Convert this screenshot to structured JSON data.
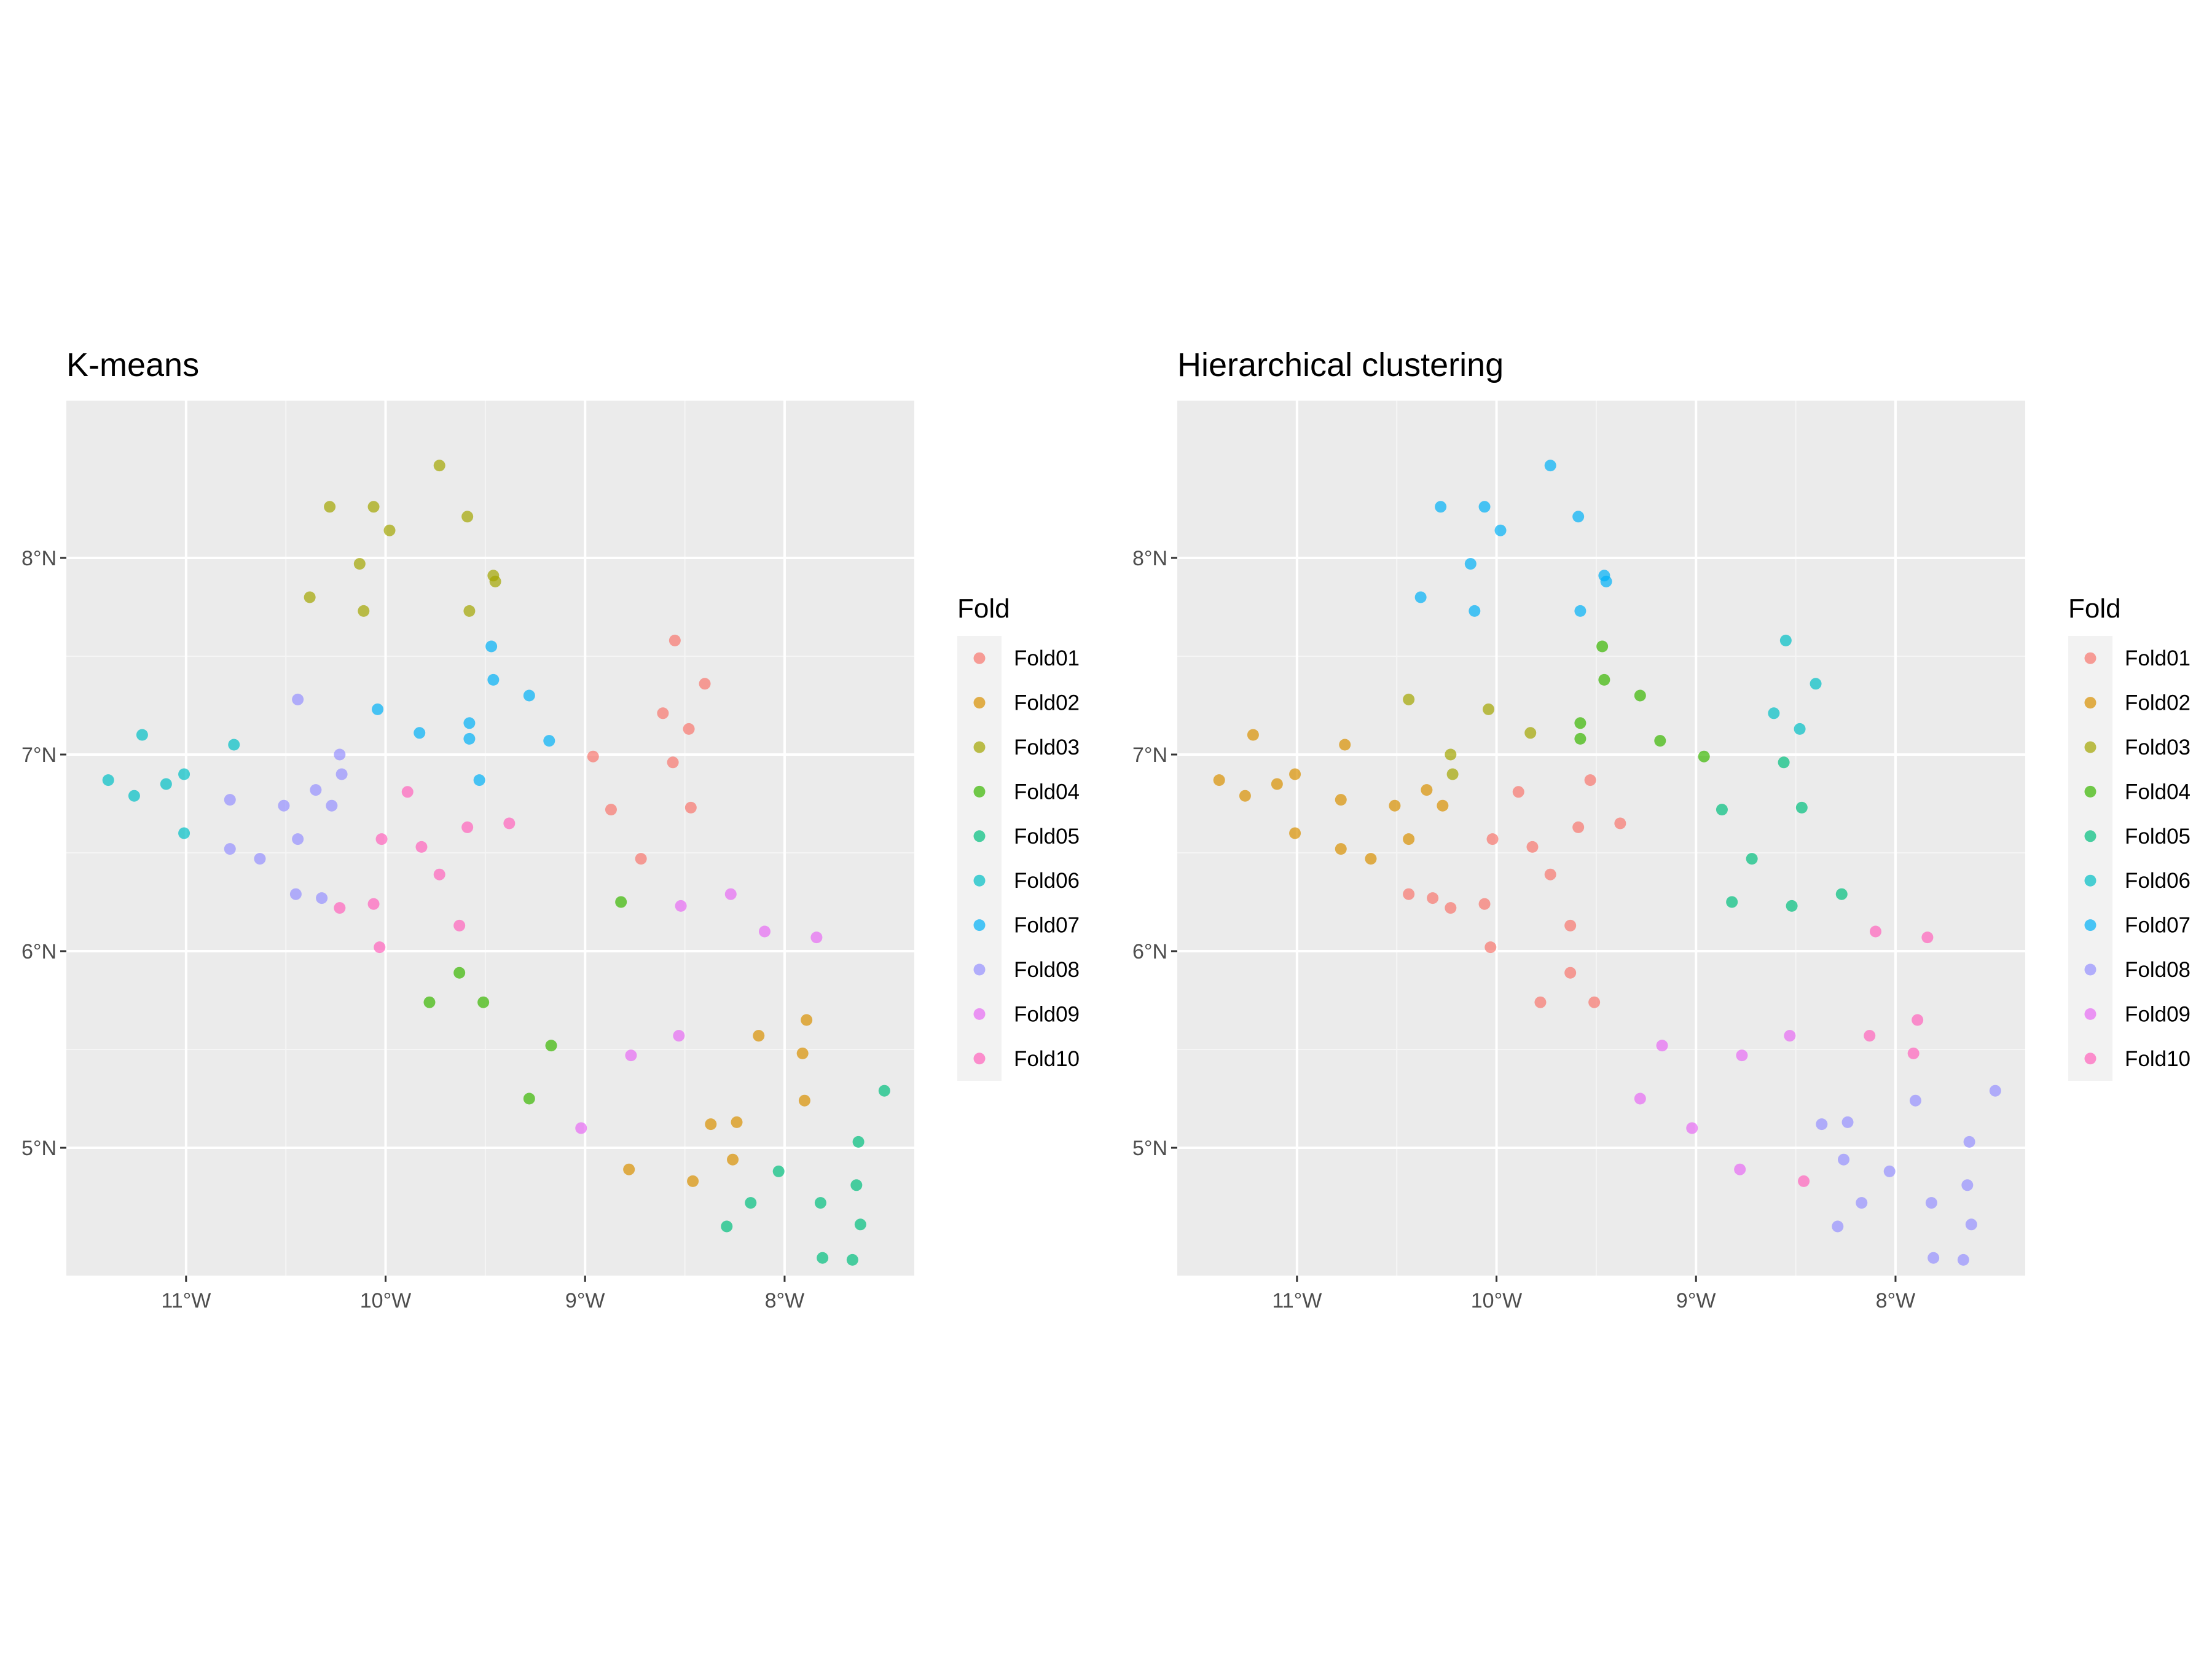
{
  "chart_data": [
    {
      "type": "scatter",
      "title": "K-means",
      "xlabel": "",
      "ylabel": "",
      "xlim": [
        -11.6,
        -7.35
      ],
      "ylim": [
        4.35,
        8.8
      ],
      "x_ticks": [
        -11,
        -10,
        -9,
        -8
      ],
      "x_tick_labels": [
        "11°W",
        "10°W",
        "9°W",
        "8°W"
      ],
      "y_ticks": [
        5,
        6,
        7,
        8
      ],
      "y_tick_labels": [
        "5°N",
        "6°N",
        "7°N",
        "8°N"
      ],
      "grid": true,
      "legend_title": "Fold",
      "legend_position": "right",
      "series": [
        {
          "name": "Fold01",
          "color": "#F8766D",
          "points": [
            [
              -8.55,
              7.58
            ],
            [
              -8.4,
              7.36
            ],
            [
              -8.61,
              7.21
            ],
            [
              -8.48,
              7.13
            ],
            [
              -8.96,
              6.99
            ],
            [
              -8.56,
              6.96
            ],
            [
              -8.87,
              6.72
            ],
            [
              -8.47,
              6.73
            ],
            [
              -8.72,
              6.47
            ]
          ]
        },
        {
          "name": "Fold02",
          "color": "#D89000",
          "points": [
            [
              -7.89,
              5.65
            ],
            [
              -8.13,
              5.57
            ],
            [
              -7.91,
              5.48
            ],
            [
              -7.9,
              5.24
            ],
            [
              -8.24,
              5.13
            ],
            [
              -8.37,
              5.12
            ],
            [
              -8.26,
              4.94
            ],
            [
              -8.78,
              4.89
            ],
            [
              -8.46,
              4.83
            ]
          ]
        },
        {
          "name": "Fold03",
          "color": "#A3A500",
          "points": [
            [
              -9.73,
              8.47
            ],
            [
              -10.28,
              8.26
            ],
            [
              -10.06,
              8.26
            ],
            [
              -9.59,
              8.21
            ],
            [
              -9.98,
              8.14
            ],
            [
              -10.13,
              7.97
            ],
            [
              -9.46,
              7.91
            ],
            [
              -9.45,
              7.88
            ],
            [
              -10.38,
              7.8
            ],
            [
              -10.11,
              7.73
            ],
            [
              -9.58,
              7.73
            ]
          ]
        },
        {
          "name": "Fold04",
          "color": "#39B600",
          "points": [
            [
              -8.82,
              6.25
            ],
            [
              -9.63,
              5.89
            ],
            [
              -9.78,
              5.74
            ],
            [
              -9.51,
              5.74
            ],
            [
              -9.17,
              5.52
            ],
            [
              -9.28,
              5.25
            ]
          ]
        },
        {
          "name": "Fold05",
          "color": "#00BF7D",
          "points": [
            [
              -7.5,
              5.29
            ],
            [
              -7.63,
              5.03
            ],
            [
              -8.03,
              4.88
            ],
            [
              -7.64,
              4.81
            ],
            [
              -8.17,
              4.72
            ],
            [
              -7.82,
              4.72
            ],
            [
              -7.62,
              4.61
            ],
            [
              -8.29,
              4.6
            ],
            [
              -7.81,
              4.44
            ],
            [
              -7.66,
              4.43
            ]
          ]
        },
        {
          "name": "Fold06",
          "color": "#00BFC4",
          "points": [
            [
              -11.22,
              7.1
            ],
            [
              -10.76,
              7.05
            ],
            [
              -11.39,
              6.87
            ],
            [
              -11.1,
              6.85
            ],
            [
              -11.01,
              6.9
            ],
            [
              -11.26,
              6.79
            ],
            [
              -11.01,
              6.6
            ]
          ]
        },
        {
          "name": "Fold07",
          "color": "#00B0F6",
          "points": [
            [
              -9.47,
              7.55
            ],
            [
              -9.46,
              7.38
            ],
            [
              -9.28,
              7.3
            ],
            [
              -10.04,
              7.23
            ],
            [
              -9.58,
              7.16
            ],
            [
              -9.83,
              7.11
            ],
            [
              -9.58,
              7.08
            ],
            [
              -9.18,
              7.07
            ],
            [
              -9.53,
              6.87
            ]
          ]
        },
        {
          "name": "Fold08",
          "color": "#9590FF",
          "points": [
            [
              -10.44,
              7.28
            ],
            [
              -10.23,
              7.0
            ],
            [
              -10.22,
              6.9
            ],
            [
              -10.78,
              6.77
            ],
            [
              -10.35,
              6.82
            ],
            [
              -10.51,
              6.74
            ],
            [
              -10.27,
              6.74
            ],
            [
              -10.44,
              6.57
            ],
            [
              -10.78,
              6.52
            ],
            [
              -10.63,
              6.47
            ],
            [
              -10.45,
              6.29
            ],
            [
              -10.32,
              6.27
            ]
          ]
        },
        {
          "name": "Fold09",
          "color": "#E76BF3",
          "points": [
            [
              -8.27,
              6.29
            ],
            [
              -8.52,
              6.23
            ],
            [
              -8.1,
              6.1
            ],
            [
              -7.84,
              6.07
            ],
            [
              -8.53,
              5.57
            ],
            [
              -8.77,
              5.47
            ],
            [
              -9.02,
              5.1
            ]
          ]
        },
        {
          "name": "Fold10",
          "color": "#FF62BC",
          "points": [
            [
              -9.89,
              6.81
            ],
            [
              -9.38,
              6.65
            ],
            [
              -9.59,
              6.63
            ],
            [
              -10.02,
              6.57
            ],
            [
              -9.82,
              6.53
            ],
            [
              -9.73,
              6.39
            ],
            [
              -10.06,
              6.24
            ],
            [
              -10.23,
              6.22
            ],
            [
              -9.63,
              6.13
            ],
            [
              -10.03,
              6.02
            ]
          ]
        }
      ]
    },
    {
      "type": "scatter",
      "title": "Hierarchical clustering",
      "xlabel": "",
      "ylabel": "",
      "xlim": [
        -11.6,
        -7.35
      ],
      "ylim": [
        4.35,
        8.8
      ],
      "x_ticks": [
        -11,
        -10,
        -9,
        -8
      ],
      "x_tick_labels": [
        "11°W",
        "10°W",
        "9°W",
        "8°W"
      ],
      "y_ticks": [
        5,
        6,
        7,
        8
      ],
      "y_tick_labels": [
        "5°N",
        "6°N",
        "7°N",
        "8°N"
      ],
      "grid": true,
      "legend_title": "Fold",
      "legend_position": "right",
      "series": [
        {
          "name": "Fold01",
          "color": "#F8766D",
          "points": [
            [
              -9.53,
              6.87
            ],
            [
              -9.89,
              6.81
            ],
            [
              -9.38,
              6.65
            ],
            [
              -9.59,
              6.63
            ],
            [
              -10.02,
              6.57
            ],
            [
              -9.82,
              6.53
            ],
            [
              -9.73,
              6.39
            ],
            [
              -10.44,
              6.29
            ],
            [
              -10.32,
              6.27
            ],
            [
              -10.06,
              6.24
            ],
            [
              -10.23,
              6.22
            ],
            [
              -9.63,
              6.13
            ],
            [
              -10.03,
              6.02
            ],
            [
              -9.63,
              5.89
            ],
            [
              -9.78,
              5.74
            ],
            [
              -9.51,
              5.74
            ]
          ]
        },
        {
          "name": "Fold02",
          "color": "#D89000",
          "points": [
            [
              -11.22,
              7.1
            ],
            [
              -10.76,
              7.05
            ],
            [
              -11.39,
              6.87
            ],
            [
              -11.1,
              6.85
            ],
            [
              -11.01,
              6.9
            ],
            [
              -11.26,
              6.79
            ],
            [
              -10.35,
              6.82
            ],
            [
              -10.78,
              6.77
            ],
            [
              -10.51,
              6.74
            ],
            [
              -10.27,
              6.74
            ],
            [
              -11.01,
              6.6
            ],
            [
              -10.44,
              6.57
            ],
            [
              -10.78,
              6.52
            ],
            [
              -10.63,
              6.47
            ]
          ]
        },
        {
          "name": "Fold03",
          "color": "#A3A500",
          "points": [
            [
              -10.44,
              7.28
            ],
            [
              -10.04,
              7.23
            ],
            [
              -9.83,
              7.11
            ],
            [
              -10.23,
              7.0
            ],
            [
              -10.22,
              6.9
            ]
          ]
        },
        {
          "name": "Fold04",
          "color": "#39B600",
          "points": [
            [
              -9.47,
              7.55
            ],
            [
              -9.46,
              7.38
            ],
            [
              -9.28,
              7.3
            ],
            [
              -9.58,
              7.16
            ],
            [
              -9.58,
              7.08
            ],
            [
              -9.18,
              7.07
            ],
            [
              -8.96,
              6.99
            ]
          ]
        },
        {
          "name": "Fold05",
          "color": "#00BF7D",
          "points": [
            [
              -8.56,
              6.96
            ],
            [
              -8.87,
              6.72
            ],
            [
              -8.47,
              6.73
            ],
            [
              -8.72,
              6.47
            ],
            [
              -8.27,
              6.29
            ],
            [
              -8.82,
              6.25
            ],
            [
              -8.52,
              6.23
            ]
          ]
        },
        {
          "name": "Fold06",
          "color": "#00BFC4",
          "points": [
            [
              -8.55,
              7.58
            ],
            [
              -8.4,
              7.36
            ],
            [
              -8.61,
              7.21
            ],
            [
              -8.48,
              7.13
            ]
          ]
        },
        {
          "name": "Fold07",
          "color": "#00B0F6",
          "points": [
            [
              -9.73,
              8.47
            ],
            [
              -10.28,
              8.26
            ],
            [
              -10.06,
              8.26
            ],
            [
              -9.59,
              8.21
            ],
            [
              -9.98,
              8.14
            ],
            [
              -10.13,
              7.97
            ],
            [
              -9.46,
              7.91
            ],
            [
              -9.45,
              7.88
            ],
            [
              -10.38,
              7.8
            ],
            [
              -10.11,
              7.73
            ],
            [
              -9.58,
              7.73
            ]
          ]
        },
        {
          "name": "Fold08",
          "color": "#9590FF",
          "points": [
            [
              -7.5,
              5.29
            ],
            [
              -7.9,
              5.24
            ],
            [
              -8.24,
              5.13
            ],
            [
              -8.37,
              5.12
            ],
            [
              -7.63,
              5.03
            ],
            [
              -8.26,
              4.94
            ],
            [
              -8.03,
              4.88
            ],
            [
              -7.64,
              4.81
            ],
            [
              -8.17,
              4.72
            ],
            [
              -7.82,
              4.72
            ],
            [
              -7.62,
              4.61
            ],
            [
              -8.29,
              4.6
            ],
            [
              -7.81,
              4.44
            ],
            [
              -7.66,
              4.43
            ]
          ]
        },
        {
          "name": "Fold09",
          "color": "#E76BF3",
          "points": [
            [
              -8.53,
              5.57
            ],
            [
              -9.17,
              5.52
            ],
            [
              -8.77,
              5.47
            ],
            [
              -9.28,
              5.25
            ],
            [
              -9.02,
              5.1
            ],
            [
              -8.78,
              4.89
            ]
          ]
        },
        {
          "name": "Fold10",
          "color": "#FF62BC",
          "points": [
            [
              -8.1,
              6.1
            ],
            [
              -7.84,
              6.07
            ],
            [
              -7.89,
              5.65
            ],
            [
              -8.13,
              5.57
            ],
            [
              -7.91,
              5.48
            ],
            [
              -8.46,
              4.83
            ]
          ]
        }
      ]
    }
  ]
}
